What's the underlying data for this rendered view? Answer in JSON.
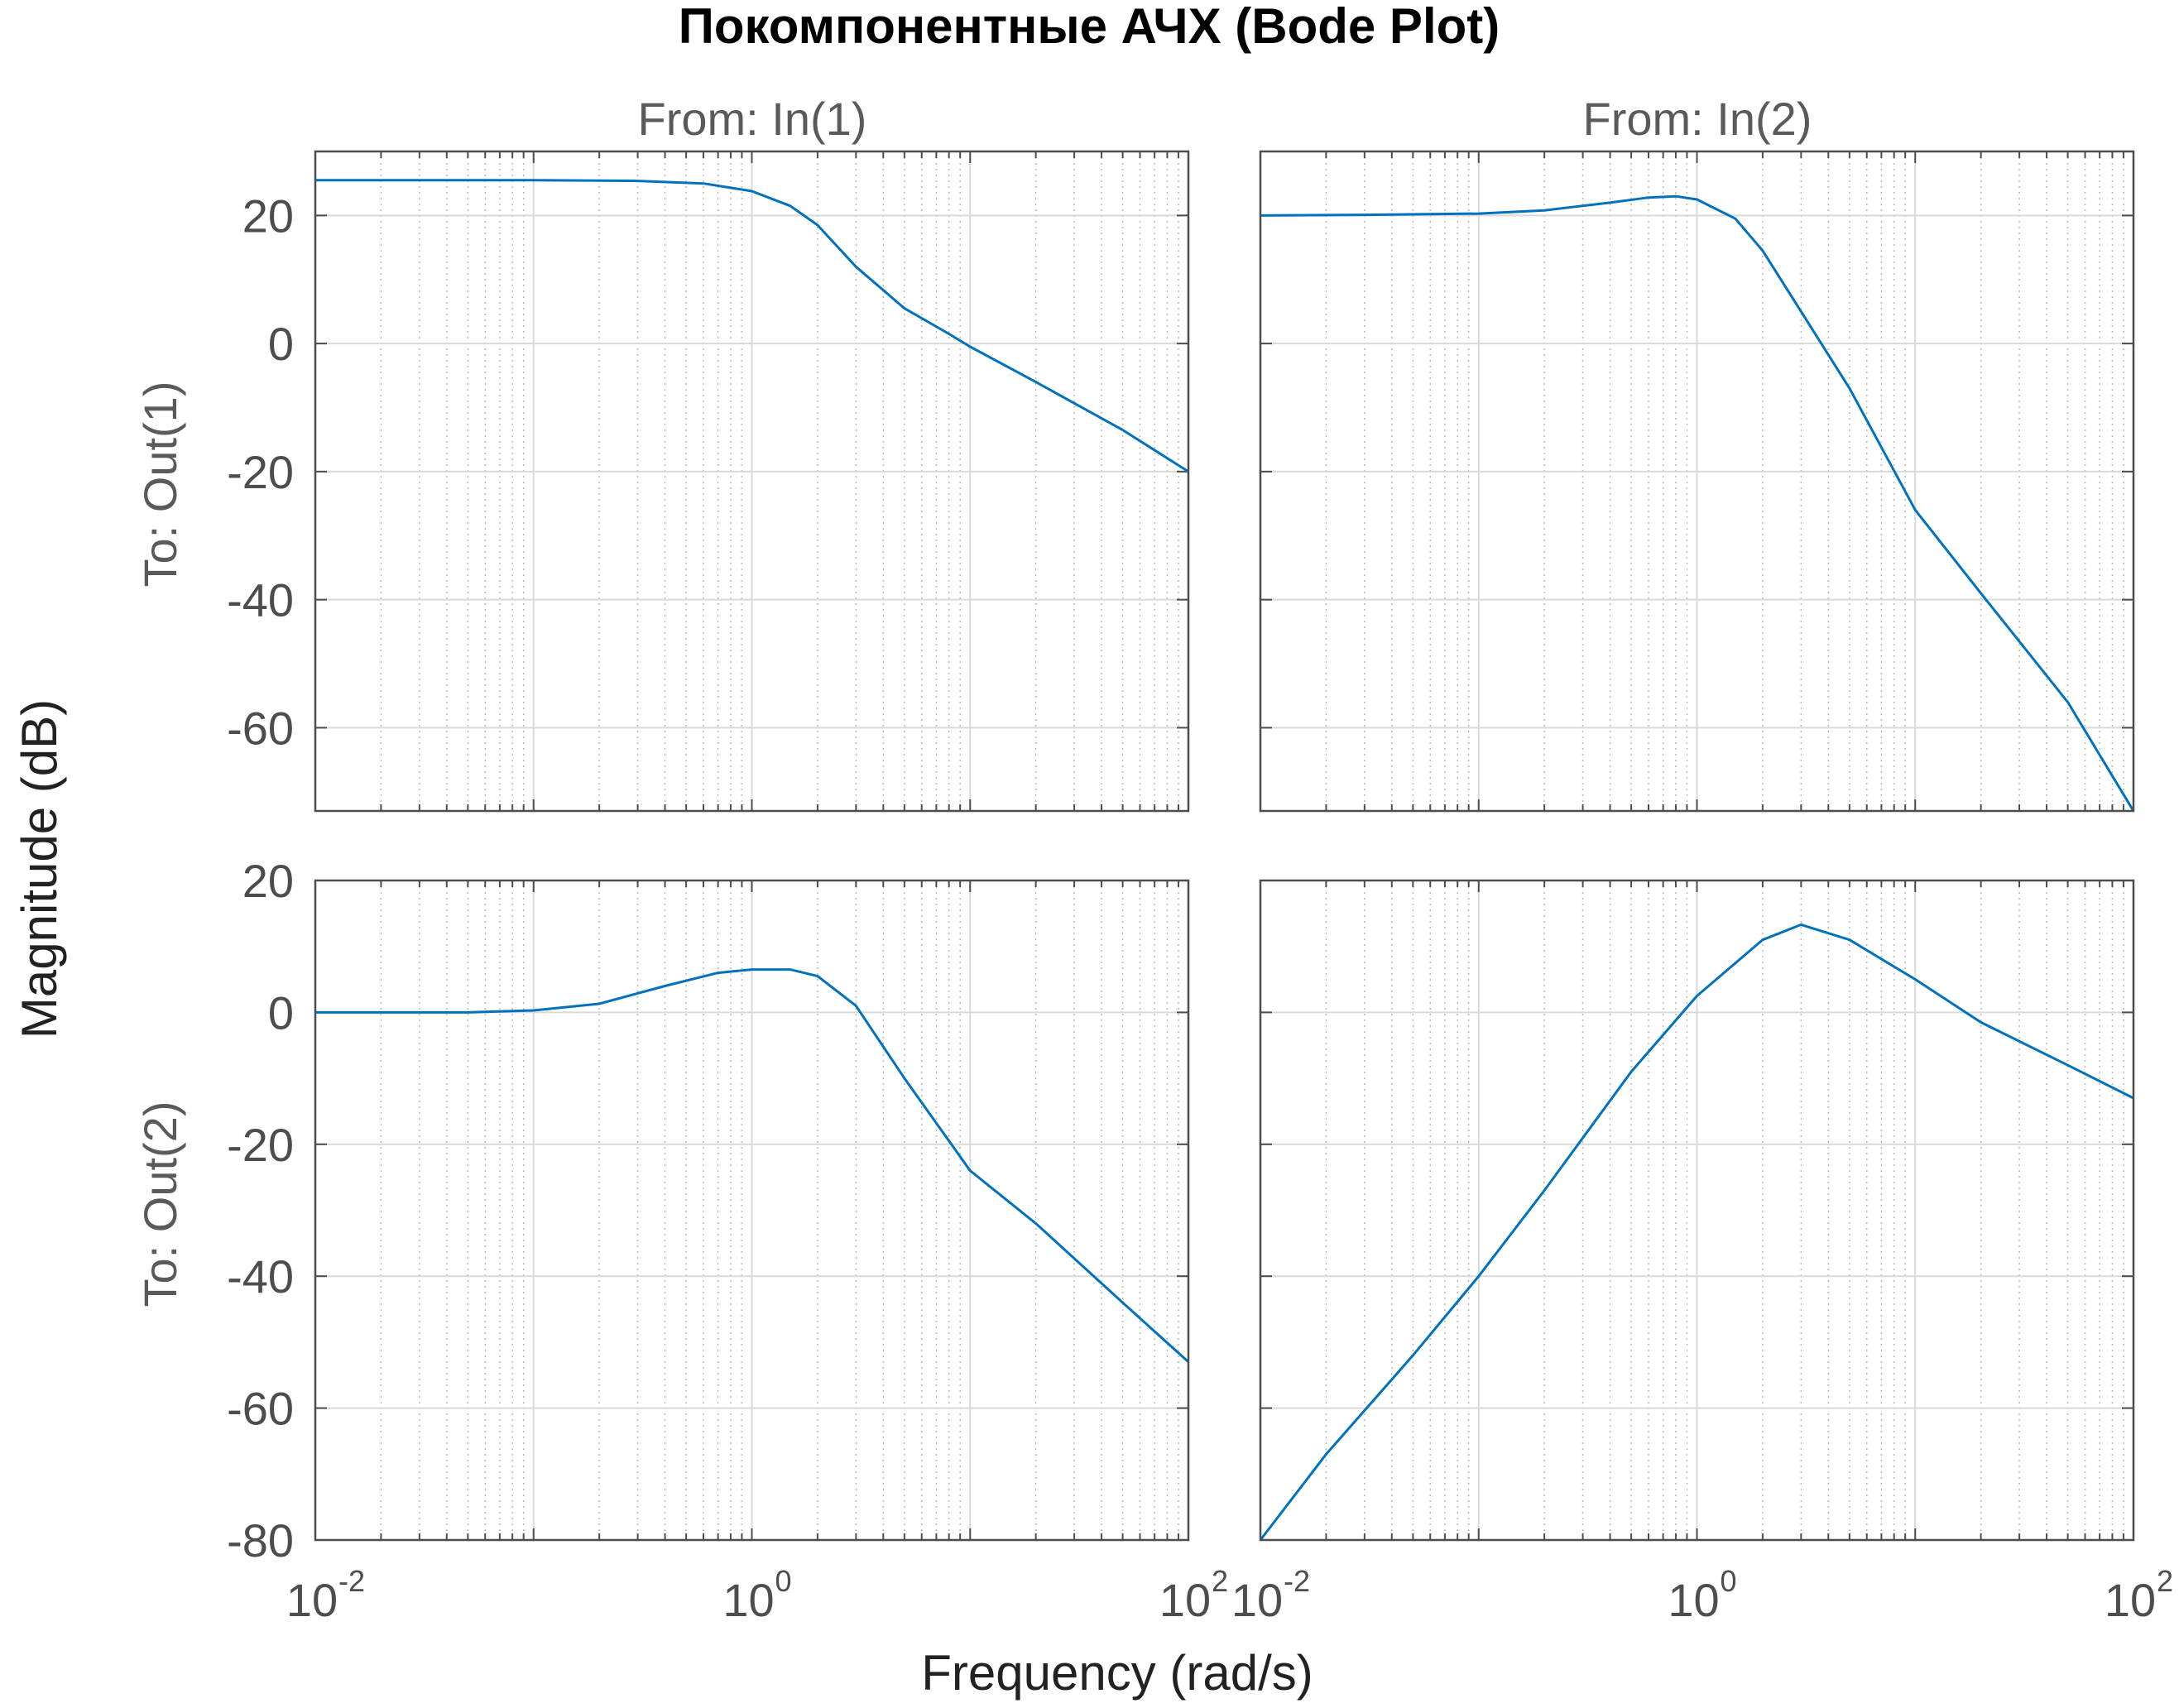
{
  "figure": {
    "title": "Покомпонентные АЧХ (Bode Plot)",
    "xlabel": "Frequency  (rad/s)",
    "ylabel": "Magnitude (dB)",
    "column_labels": [
      "From: In(1)",
      "From: In(2)"
    ],
    "row_labels": [
      "To: Out(1)",
      "To: Out(2)"
    ],
    "x_tick_labels": [
      {
        "base": "10",
        "exp": "-2"
      },
      {
        "base": "10",
        "exp": "0"
      },
      {
        "base": "10",
        "exp": "2"
      }
    ],
    "line_color": "#0072BD",
    "grid_color": "#d9d9d9",
    "axes_color": "#4d4d4d"
  },
  "chart_data": [
    {
      "type": "line",
      "panel": "From: In(1) / To: Out(1)",
      "x_scale": "log",
      "xlim": [
        0.01,
        100
      ],
      "ylim": [
        -73,
        30
      ],
      "yticks": [
        -60,
        -40,
        -20,
        0,
        20
      ],
      "grid": true,
      "x": [
        0.01,
        0.03,
        0.1,
        0.3,
        0.6,
        1,
        1.5,
        2,
        3,
        5,
        8,
        10,
        20,
        50,
        100
      ],
      "y": [
        25.5,
        25.5,
        25.5,
        25.4,
        25,
        23.8,
        21.5,
        18.5,
        12,
        5.5,
        1.5,
        -0.5,
        -6,
        -13.5,
        -20
      ]
    },
    {
      "type": "line",
      "panel": "From: In(2) / To: Out(1)",
      "x_scale": "log",
      "xlim": [
        0.01,
        100
      ],
      "ylim": [
        -73,
        30
      ],
      "yticks": [
        -60,
        -40,
        -20,
        0,
        20
      ],
      "grid": true,
      "x": [
        0.01,
        0.03,
        0.1,
        0.2,
        0.4,
        0.6,
        0.8,
        1,
        1.5,
        2,
        3,
        5,
        10,
        20,
        50,
        100
      ],
      "y": [
        20,
        20.1,
        20.3,
        20.8,
        22,
        22.8,
        23,
        22.5,
        19.5,
        14.5,
        5,
        -7,
        -26,
        -39,
        -56,
        -73
      ]
    },
    {
      "type": "line",
      "panel": "From: In(1) / To: Out(2)",
      "x_scale": "log",
      "xlim": [
        0.01,
        100
      ],
      "ylim": [
        -80,
        20
      ],
      "yticks": [
        -80,
        -60,
        -40,
        -20,
        0,
        20
      ],
      "grid": true,
      "x": [
        0.01,
        0.05,
        0.1,
        0.2,
        0.4,
        0.7,
        1,
        1.5,
        2,
        3,
        5,
        10,
        20,
        50,
        100
      ],
      "y": [
        0,
        0,
        0.3,
        1.3,
        4,
        6,
        6.5,
        6.5,
        5.5,
        1,
        -10,
        -24,
        -32,
        -44,
        -53
      ]
    },
    {
      "type": "line",
      "panel": "From: In(2) / To: Out(2)",
      "x_scale": "log",
      "xlim": [
        0.01,
        100
      ],
      "ylim": [
        -80,
        20
      ],
      "yticks": [
        -80,
        -60,
        -40,
        -20,
        0,
        20
      ],
      "grid": true,
      "x": [
        0.01,
        0.02,
        0.05,
        0.1,
        0.2,
        0.5,
        1,
        2,
        3,
        5,
        10,
        20,
        50,
        100
      ],
      "y": [
        -80,
        -67,
        -52,
        -40,
        -27,
        -9,
        2.5,
        11,
        13.3,
        11,
        5,
        -1.5,
        -8,
        -13
      ]
    }
  ]
}
